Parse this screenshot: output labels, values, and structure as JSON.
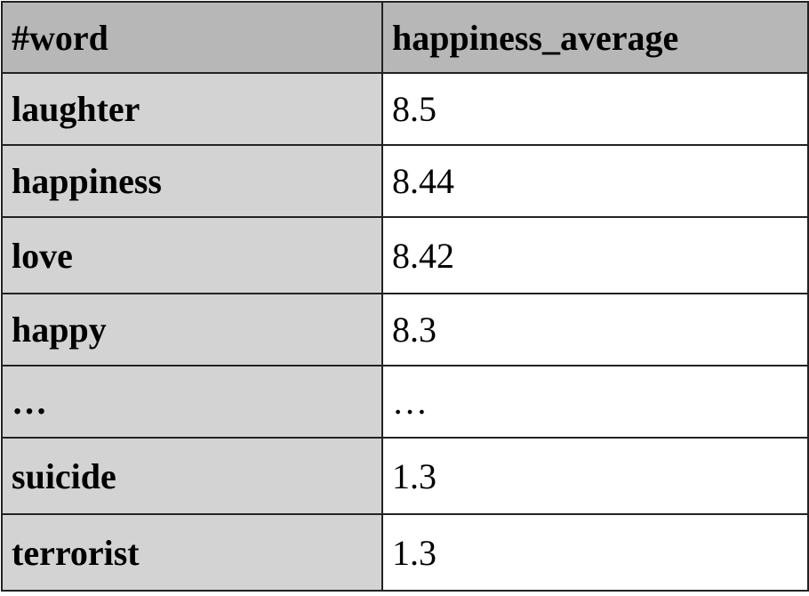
{
  "table": {
    "headers": [
      "#word",
      "happiness_average"
    ],
    "rows": [
      {
        "word": "laughter",
        "value": "8.5"
      },
      {
        "word": "happiness",
        "value": "8.44"
      },
      {
        "word": "love",
        "value": "8.42"
      },
      {
        "word": "happy",
        "value": "8.3"
      },
      {
        "word": "…",
        "value": "…"
      },
      {
        "word": "suicide",
        "value": "1.3"
      },
      {
        "word": "terrorist",
        "value": "1.3"
      }
    ]
  },
  "colors": {
    "header_bg": "#b7b7b7",
    "word_col_bg": "#d3d3d3",
    "value_col_bg": "#ffffff",
    "border": "#222222"
  }
}
